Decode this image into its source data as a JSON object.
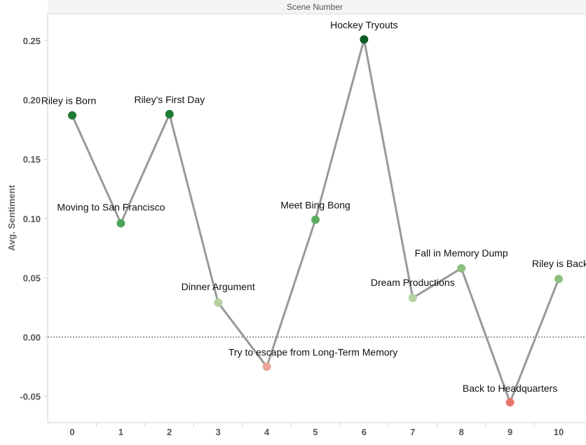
{
  "chart_data": {
    "type": "line",
    "title": "Scene Number",
    "xlabel": "",
    "ylabel": "Avg. Sentiment",
    "x": [
      0,
      1,
      2,
      3,
      4,
      5,
      6,
      7,
      8,
      9,
      10
    ],
    "y": [
      0.187,
      0.096,
      0.188,
      0.029,
      -0.025,
      0.099,
      0.251,
      0.033,
      0.058,
      -0.055,
      0.049
    ],
    "labels": [
      "Riley is Born",
      "Moving to San Francisco",
      "Riley's First Day",
      "Dinner Argument",
      "Try to escape from Long-Term Memory",
      "Meet Bing Bong",
      "Hockey Tryouts",
      "Dream Productions",
      "Fall in Memory Dump",
      "Back to Headquarters",
      "Riley is Back"
    ],
    "point_colors": [
      "#1e7b35",
      "#4ea55a",
      "#1e7b35",
      "#b5d1a3",
      "#eba59b",
      "#5fad63",
      "#0d5c24",
      "#b5d1a3",
      "#8ebf80",
      "#e8756c",
      "#8ebf80"
    ],
    "line_color": "#999999",
    "xticks": [
      "0",
      "1",
      "2",
      "3",
      "4",
      "5",
      "6",
      "7",
      "8",
      "9",
      "10"
    ],
    "yticks": [
      "0.25",
      "0.20",
      "0.15",
      "0.10",
      "0.05",
      "0.00",
      "-0.05"
    ],
    "ytick_values": [
      0.25,
      0.2,
      0.15,
      0.1,
      0.05,
      0.0,
      -0.05
    ],
    "xlim": [
      0,
      10
    ],
    "ylim": [
      -0.072,
      0.27
    ],
    "grid": false,
    "zero_line": true,
    "legend": "none"
  }
}
